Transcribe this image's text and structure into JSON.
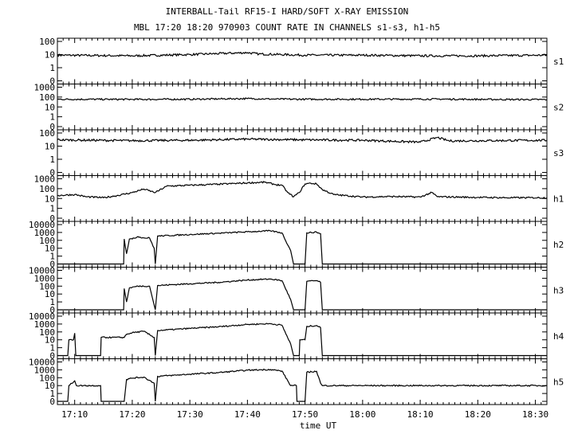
{
  "chart_data": {
    "type": "line",
    "title": "INTERBALL-Tail RF15-I HARD/SOFT X-RAY EMISSION",
    "subtitle": "MBL 17:20 18:20 970903  COUNT RATE IN CHANNELS s1-s3, h1-h5",
    "xlabel": "time UT",
    "x_tick_labels": [
      "17:10",
      "17:20",
      "17:30",
      "17:40",
      "17:50",
      "18:00",
      "18:10",
      "18:20",
      "18:30"
    ],
    "x_range": [
      "17:07",
      "18:32"
    ],
    "y_scale": "log",
    "grid": false,
    "line_color": "#000000",
    "background": "#ffffff",
    "panels": [
      {
        "name": "s1",
        "y_ticks": [
          "100",
          "10",
          "1",
          "0"
        ],
        "points": [
          [
            "17:07",
            9
          ],
          [
            "17:20",
            8
          ],
          [
            "17:30",
            10
          ],
          [
            "17:40",
            14
          ],
          [
            "17:42",
            11
          ],
          [
            "17:50",
            9
          ],
          [
            "18:00",
            9
          ],
          [
            "18:10",
            8
          ],
          [
            "18:20",
            8
          ],
          [
            "18:32",
            9
          ]
        ]
      },
      {
        "name": "s2",
        "y_ticks": [
          "1000",
          "100",
          "10",
          "1",
          "0"
        ],
        "points": [
          [
            "17:07",
            60
          ],
          [
            "17:20",
            58
          ],
          [
            "17:30",
            60
          ],
          [
            "17:40",
            70
          ],
          [
            "17:45",
            62
          ],
          [
            "17:50",
            60
          ],
          [
            "18:00",
            60
          ],
          [
            "18:13",
            62
          ],
          [
            "18:20",
            58
          ],
          [
            "18:32",
            55
          ]
        ]
      },
      {
        "name": "s3",
        "y_ticks": [
          "100",
          "10",
          "1",
          "0"
        ],
        "points": [
          [
            "17:07",
            30
          ],
          [
            "17:20",
            26
          ],
          [
            "17:30",
            28
          ],
          [
            "17:40",
            34
          ],
          [
            "17:50",
            30
          ],
          [
            "18:00",
            28
          ],
          [
            "18:10",
            20
          ],
          [
            "18:13",
            45
          ],
          [
            "18:15",
            25
          ],
          [
            "18:32",
            28
          ]
        ]
      },
      {
        "name": "h1",
        "y_ticks": [
          "1000",
          "100",
          "10",
          "1",
          "0"
        ],
        "points": [
          [
            "17:07",
            20
          ],
          [
            "17:10",
            25
          ],
          [
            "17:12",
            15
          ],
          [
            "17:15",
            12
          ],
          [
            "17:17",
            18
          ],
          [
            "17:20",
            40
          ],
          [
            "17:22",
            90
          ],
          [
            "17:24",
            40
          ],
          [
            "17:26",
            180
          ],
          [
            "17:30",
            220
          ],
          [
            "17:35",
            280
          ],
          [
            "17:40",
            380
          ],
          [
            "17:43",
            450
          ],
          [
            "17:45",
            250
          ],
          [
            "17:46",
            220
          ],
          [
            "17:47",
            40
          ],
          [
            "17:48",
            15
          ],
          [
            "17:49",
            40
          ],
          [
            "17:50",
            300
          ],
          [
            "17:51",
            350
          ],
          [
            "17:52",
            300
          ],
          [
            "17:53",
            80
          ],
          [
            "17:55",
            25
          ],
          [
            "18:00",
            14
          ],
          [
            "18:05",
            16
          ],
          [
            "18:10",
            14
          ],
          [
            "18:12",
            40
          ],
          [
            "18:13",
            15
          ],
          [
            "18:20",
            13
          ],
          [
            "18:25",
            12
          ],
          [
            "18:32",
            12
          ]
        ]
      },
      {
        "name": "h2",
        "y_ticks": [
          "10000",
          "1000",
          "100",
          "10",
          "1",
          "0"
        ],
        "points": [
          [
            "17:07",
            0
          ],
          [
            "17:18.5",
            0
          ],
          [
            "17:18.6",
            150
          ],
          [
            "17:19",
            2
          ],
          [
            "17:19.5",
            150
          ],
          [
            "17:20",
            150
          ],
          [
            "17:21",
            300
          ],
          [
            "17:22",
            200
          ],
          [
            "17:23",
            200
          ],
          [
            "17:23.8",
            10
          ],
          [
            "17:24",
            0
          ],
          [
            "17:24.4",
            350
          ],
          [
            "17:30",
            550
          ],
          [
            "17:35",
            800
          ],
          [
            "17:40",
            1200
          ],
          [
            "17:44",
            1600
          ],
          [
            "17:46",
            900
          ],
          [
            "17:47.5",
            5
          ],
          [
            "17:48",
            0
          ],
          [
            "17:50",
            0
          ],
          [
            "17:50.3",
            900
          ],
          [
            "17:52",
            1100
          ],
          [
            "17:52.7",
            700
          ],
          [
            "17:53",
            0
          ],
          [
            "18:32",
            0
          ]
        ]
      },
      {
        "name": "h3",
        "y_ticks": [
          "10000",
          "1000",
          "100",
          "10",
          "1",
          "0"
        ],
        "points": [
          [
            "17:07",
            0
          ],
          [
            "17:18.5",
            0
          ],
          [
            "17:18.6",
            50
          ],
          [
            "17:19",
            1
          ],
          [
            "17:19.5",
            60
          ],
          [
            "17:21",
            100
          ],
          [
            "17:23",
            100
          ],
          [
            "17:24",
            0
          ],
          [
            "17:24.4",
            120
          ],
          [
            "17:30",
            200
          ],
          [
            "17:35",
            300
          ],
          [
            "17:40",
            600
          ],
          [
            "17:44",
            800
          ],
          [
            "17:46",
            500
          ],
          [
            "17:47.5",
            2
          ],
          [
            "17:48",
            0
          ],
          [
            "17:50",
            0
          ],
          [
            "17:50.3",
            400
          ],
          [
            "17:52",
            500
          ],
          [
            "17:52.7",
            300
          ],
          [
            "17:53",
            0
          ],
          [
            "18:32",
            0
          ]
        ]
      },
      {
        "name": "h4",
        "y_ticks": [
          "10000",
          "1000",
          "100",
          "10",
          "1",
          "0"
        ],
        "points": [
          [
            "17:07",
            0
          ],
          [
            "17:08.8",
            0
          ],
          [
            "17:09",
            10
          ],
          [
            "17:09.8",
            10
          ],
          [
            "17:10",
            70
          ],
          [
            "17:10.2",
            0
          ],
          [
            "17:14.5",
            0
          ],
          [
            "17:14.6",
            20
          ],
          [
            "17:18.6",
            20
          ],
          [
            "17:19",
            50
          ],
          [
            "17:20",
            80
          ],
          [
            "17:22",
            120
          ],
          [
            "17:23.8",
            20
          ],
          [
            "17:24",
            0
          ],
          [
            "17:24.4",
            150
          ],
          [
            "17:30",
            280
          ],
          [
            "17:35",
            450
          ],
          [
            "17:40",
            900
          ],
          [
            "17:44",
            1100
          ],
          [
            "17:46",
            700
          ],
          [
            "17:47.5",
            3
          ],
          [
            "17:48",
            0
          ],
          [
            "17:49",
            0
          ],
          [
            "17:49.1",
            10
          ],
          [
            "17:50",
            10
          ],
          [
            "17:50.3",
            500
          ],
          [
            "17:52",
            650
          ],
          [
            "17:52.7",
            350
          ],
          [
            "17:53",
            0
          ],
          [
            "18:32",
            0
          ]
        ]
      },
      {
        "name": "h5",
        "y_ticks": [
          "10000",
          "1000",
          "100",
          "10",
          "1",
          "0"
        ],
        "points": [
          [
            "17:07",
            0
          ],
          [
            "17:08.8",
            0
          ],
          [
            "17:09",
            10
          ],
          [
            "17:10",
            40
          ],
          [
            "17:10.3",
            10
          ],
          [
            "17:14.5",
            10
          ],
          [
            "17:14.6",
            0
          ],
          [
            "17:18.6",
            0
          ],
          [
            "17:19",
            60
          ],
          [
            "17:20",
            90
          ],
          [
            "17:22",
            120
          ],
          [
            "17:23.8",
            20
          ],
          [
            "17:24",
            0
          ],
          [
            "17:24.4",
            150
          ],
          [
            "17:30",
            280
          ],
          [
            "17:35",
            450
          ],
          [
            "17:40",
            900
          ],
          [
            "17:44",
            1100
          ],
          [
            "17:46",
            700
          ],
          [
            "17:47.5",
            10
          ],
          [
            "17:48.5",
            10
          ],
          [
            "17:48.6",
            0
          ],
          [
            "17:50",
            0
          ],
          [
            "17:50.3",
            500
          ],
          [
            "17:52",
            650
          ],
          [
            "17:52.7",
            20
          ],
          [
            "17:53",
            10
          ],
          [
            "18:32",
            10
          ]
        ]
      }
    ]
  }
}
